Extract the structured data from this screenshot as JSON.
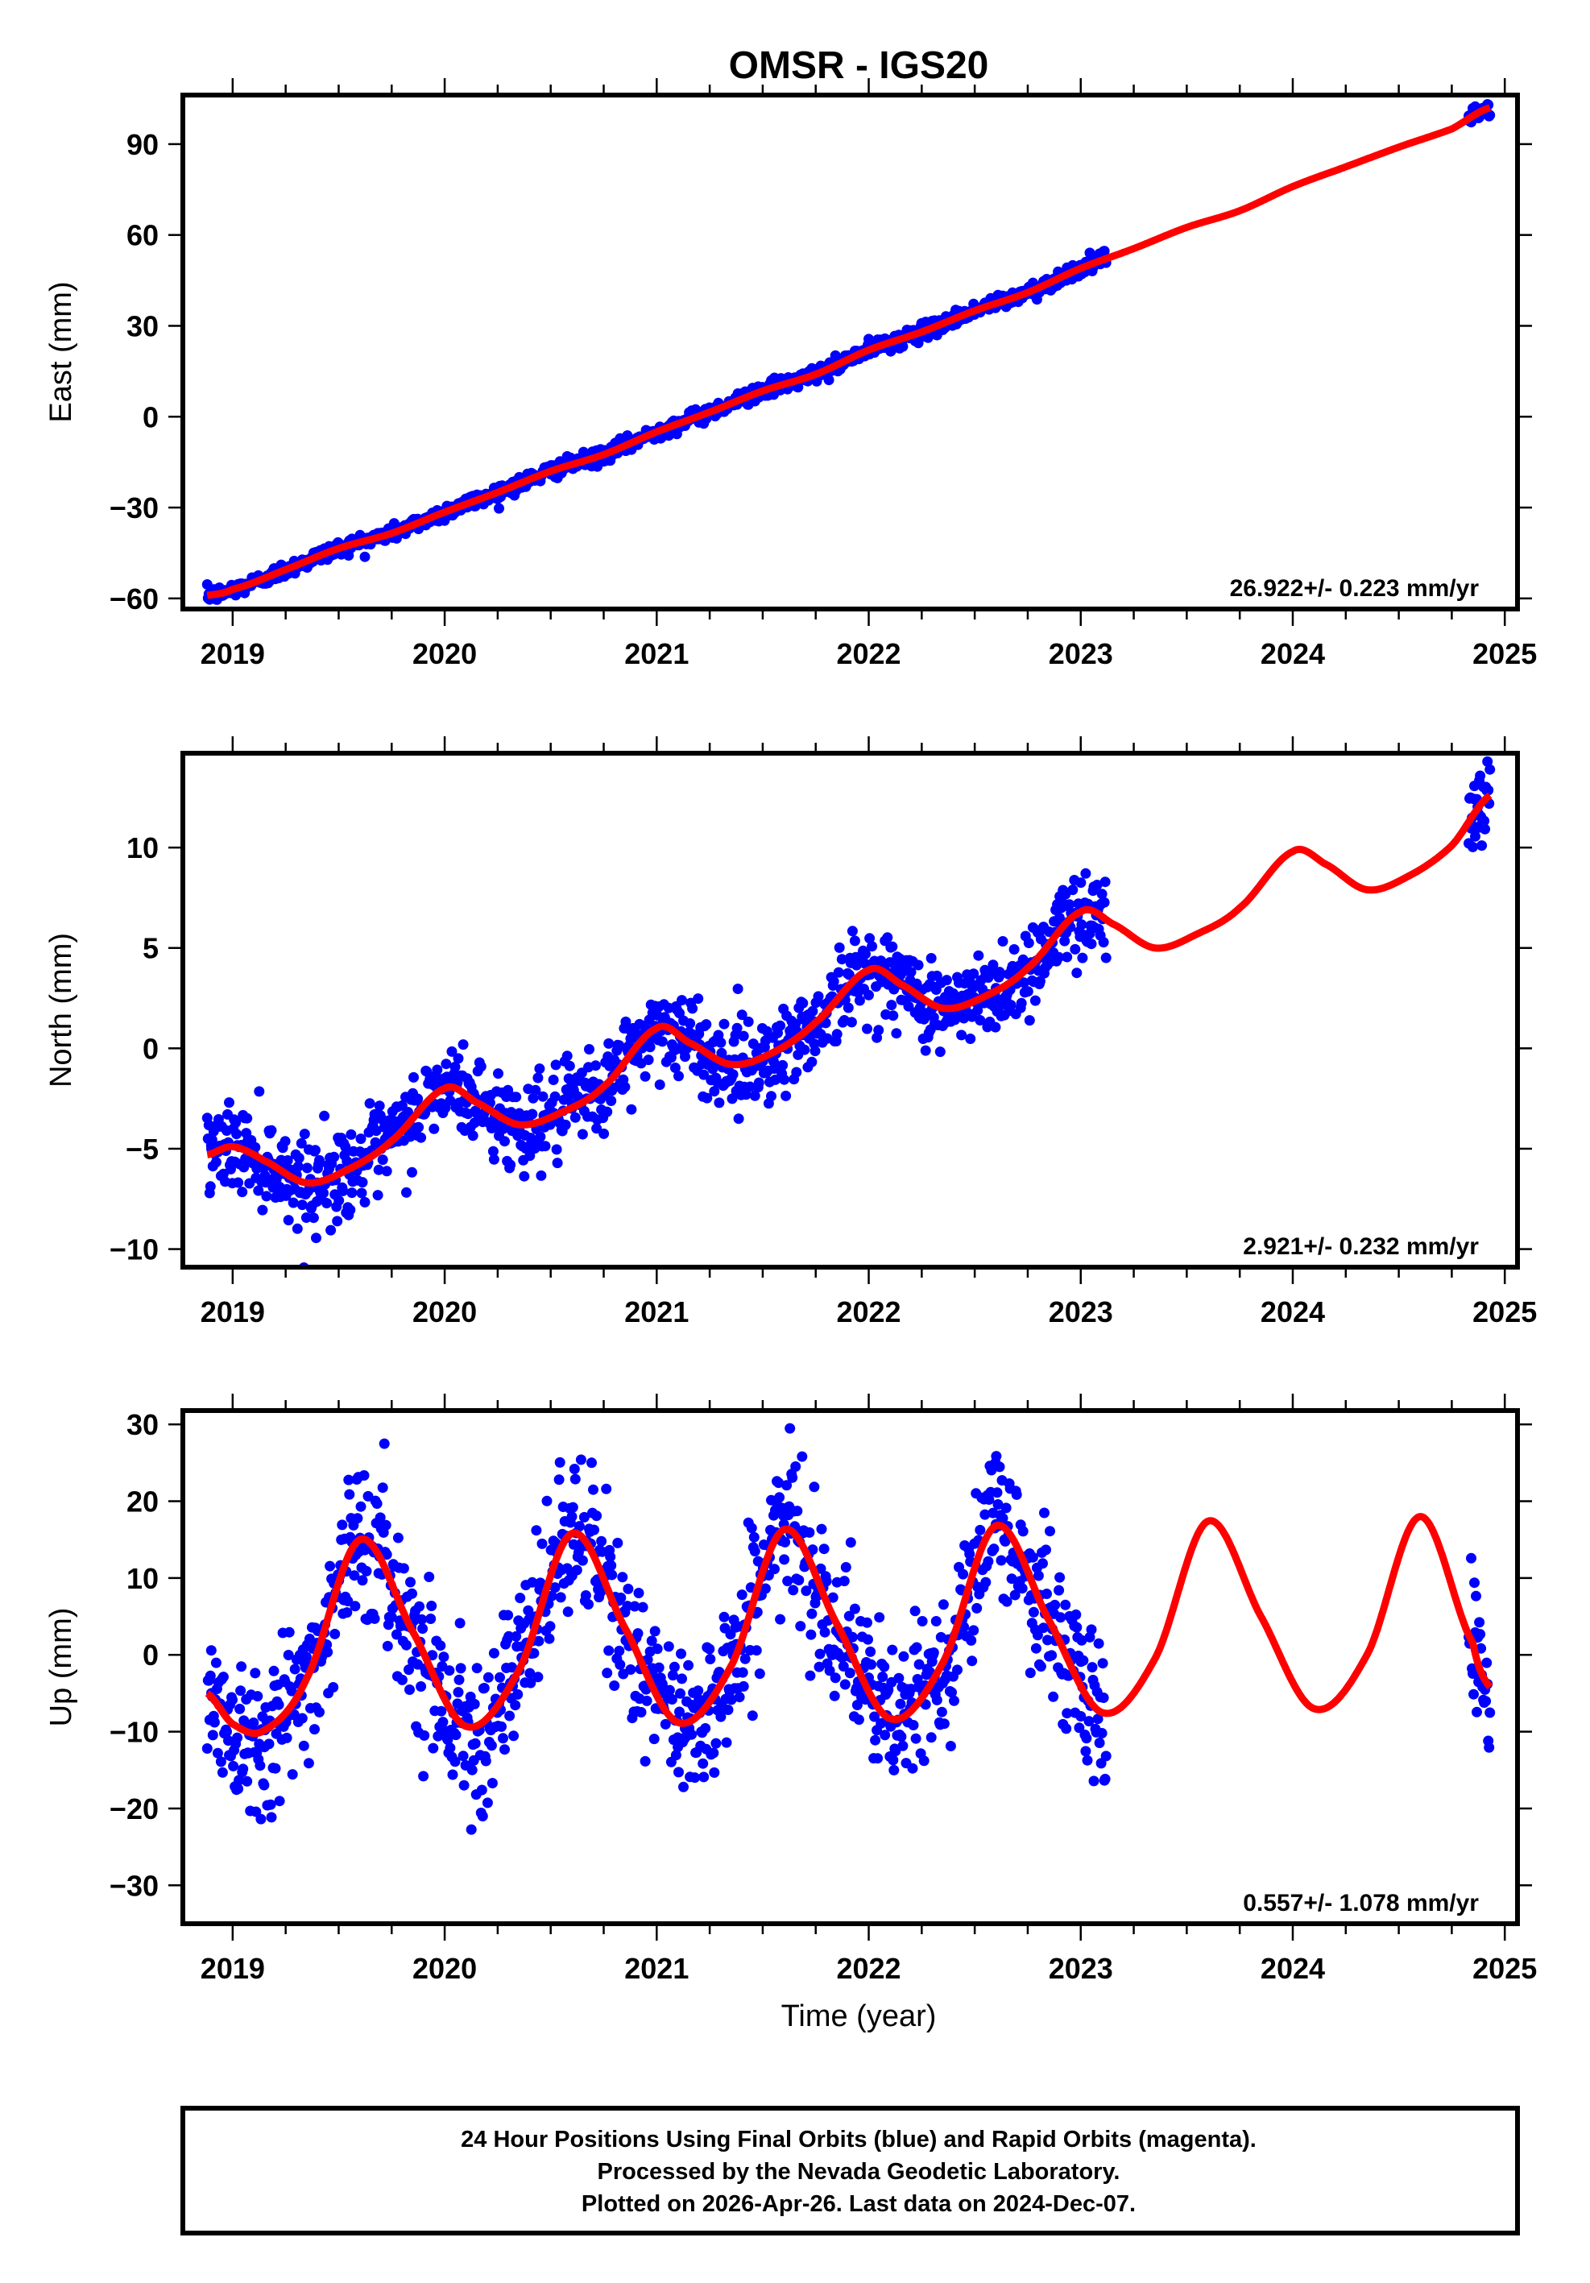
{
  "chart_data": {
    "type": "scatter",
    "title": "OMSR - IGS20",
    "xlabel": "Time (year)",
    "x_ticks": [
      2019,
      2020,
      2021,
      2022,
      2023,
      2024,
      2025
    ],
    "x_minor_tick_step": 0.25,
    "xlim": [
      2018.765,
      2025.06
    ],
    "grid": false,
    "legend": "none",
    "panels": [
      {
        "id": "east",
        "ylabel": "East (mm)",
        "ylim": [
          -63.5,
          106.2
        ],
        "y_ticks": [
          -60,
          -30,
          0,
          30,
          60,
          90
        ],
        "y_minor_tick_step": 15,
        "rate_text": "26.922+/- 0.223 mm/yr",
        "series": [
          {
            "name": "Final Orbits (observed positions)",
            "type": "scatter",
            "color": "#0000ff",
            "observation_spans": [
              [
                2018.88,
                2023.12
              ],
              [
                2024.83,
                2024.93
              ]
            ],
            "samples": {
              "x": [
                2018.9,
                2019.25,
                2019.5,
                2019.75,
                2020.0,
                2020.25,
                2020.5,
                2020.75,
                2021.0,
                2021.25,
                2021.5,
                2021.75,
                2022.0,
                2022.25,
                2022.5,
                2022.75,
                2023.0,
                2024.88
              ],
              "y": [
                -59,
                -50,
                -44,
                -38,
                -31,
                -25,
                -19,
                -13,
                -5,
                2,
                9,
                15,
                23,
                30,
                36,
                42,
                50,
                101
              ]
            },
            "scatter_std": 1.3
          },
          {
            "name": "Model fit",
            "type": "line",
            "color": "#ff0000",
            "x": [
              2018.88,
              2019.0,
              2019.25,
              2019.5,
              2019.75,
              2020.0,
              2020.25,
              2020.5,
              2020.75,
              2021.0,
              2021.25,
              2021.5,
              2021.75,
              2022.0,
              2022.25,
              2022.5,
              2022.75,
              2023.0,
              2023.25,
              2023.5,
              2023.75,
              2024.0,
              2024.25,
              2024.5,
              2024.75,
              2024.93
            ],
            "y": [
              -59.0,
              -57.0,
              -50.5,
              -43.5,
              -38.5,
              -31.5,
              -25.0,
              -18.0,
              -12.5,
              -5.0,
              1.5,
              8.5,
              14.0,
              22.0,
              28.0,
              35.0,
              41.0,
              49.0,
              55.5,
              62.5,
              68.0,
              76.0,
              82.5,
              89.0,
              95.0,
              102.0
            ]
          }
        ]
      },
      {
        "id": "north",
        "ylabel": "North (mm)",
        "ylim": [
          -10.9,
          14.7
        ],
        "y_ticks": [
          -10,
          -5,
          0,
          5,
          10
        ],
        "y_minor_tick_step": 2.5,
        "rate_text": "2.921+/- 0.232 mm/yr",
        "series": [
          {
            "name": "Final Orbits (observed positions)",
            "type": "scatter",
            "color": "#0000ff",
            "observation_spans": [
              [
                2018.88,
                2023.12
              ],
              [
                2024.83,
                2024.93
              ]
            ],
            "samples": {
              "x": [
                2018.9,
                2019.1,
                2019.4,
                2019.7,
                2020.0,
                2020.3,
                2020.6,
                2021.0,
                2021.3,
                2021.6,
                2022.0,
                2022.3,
                2022.6,
                2022.9,
                2024.88
              ],
              "y": [
                -5.0,
                -5.3,
                -6.7,
                -5.0,
                -2.0,
                -3.8,
                -3.0,
                1.0,
                -0.8,
                0.2,
                4.0,
                2.0,
                3.0,
                6.5,
                11.0
              ]
            },
            "scatter_std": 1.1
          },
          {
            "name": "Model fit",
            "type": "line",
            "color": "#ff0000",
            "x": [
              2018.88,
              2019.0,
              2019.15,
              2019.35,
              2019.55,
              2019.75,
              2020.0,
              2020.15,
              2020.35,
              2020.55,
              2020.75,
              2021.0,
              2021.15,
              2021.35,
              2021.55,
              2021.75,
              2022.0,
              2022.15,
              2022.35,
              2022.55,
              2022.75,
              2023.0,
              2023.15,
              2023.35,
              2023.55,
              2023.75,
              2024.0,
              2024.15,
              2024.35,
              2024.55,
              2024.75,
              2024.93
            ],
            "y": [
              -5.3,
              -4.9,
              -5.6,
              -6.7,
              -6.0,
              -4.6,
              -2.0,
              -2.7,
              -3.8,
              -3.2,
              -1.9,
              1.0,
              0.3,
              -0.8,
              -0.2,
              1.3,
              3.9,
              3.2,
              2.0,
              2.6,
              4.0,
              6.8,
              6.2,
              5.0,
              5.7,
              7.0,
              9.8,
              9.2,
              7.9,
              8.6,
              10.1,
              12.6
            ]
          }
        ]
      },
      {
        "id": "up",
        "ylabel": "Up (mm)",
        "ylim": [
          -35.0,
          31.8
        ],
        "y_ticks": [
          -30,
          -20,
          -10,
          0,
          10,
          20,
          30
        ],
        "y_minor_tick_step": 5,
        "rate_text": "0.557+/- 1.078 mm/yr",
        "series": [
          {
            "name": "Final Orbits (observed positions)",
            "type": "scatter",
            "color": "#0000ff",
            "observation_spans": [
              [
                2018.88,
                2023.12
              ],
              [
                2024.83,
                2024.93
              ]
            ],
            "samples": {
              "x": [
                2018.9,
                2019.15,
                2019.6,
                2020.1,
                2020.6,
                2021.1,
                2021.6,
                2022.1,
                2022.6,
                2023.0,
                2024.88
              ],
              "y": [
                -5,
                -12,
                15,
                -9,
                18,
                -12,
                17,
                -9,
                17,
                -8,
                -3
              ]
            },
            "scatter_std": 5.0
          },
          {
            "name": "Model fit",
            "type": "line",
            "color": "#ff0000",
            "x": [
              2018.88,
              2019.0,
              2019.15,
              2019.35,
              2019.6,
              2019.85,
              2020.1,
              2020.35,
              2020.6,
              2020.85,
              2021.1,
              2021.35,
              2021.6,
              2021.85,
              2022.1,
              2022.35,
              2022.6,
              2022.85,
              2023.1,
              2023.35,
              2023.6,
              2023.85,
              2024.1,
              2024.35,
              2024.6,
              2024.85,
              2024.93
            ],
            "y": [
              -5.0,
              -9.0,
              -9.8,
              -3.0,
              15.0,
              3.0,
              -9.3,
              -2.0,
              15.8,
              3.5,
              -8.8,
              -1.5,
              16.3,
              4.0,
              -8.3,
              -1.0,
              16.8,
              4.5,
              -7.5,
              -0.5,
              17.4,
              5.0,
              -7.0,
              0.0,
              18.0,
              1.5,
              -4.2
            ]
          }
        ]
      }
    ]
  },
  "footer": {
    "line1": "24 Hour Positions Using Final Orbits (blue) and Rapid Orbits (magenta).",
    "line2": "Processed by the Nevada Geodetic Laboratory.",
    "line3": "Plotted on 2026-Apr-26. Last data on 2024-Dec-07."
  }
}
